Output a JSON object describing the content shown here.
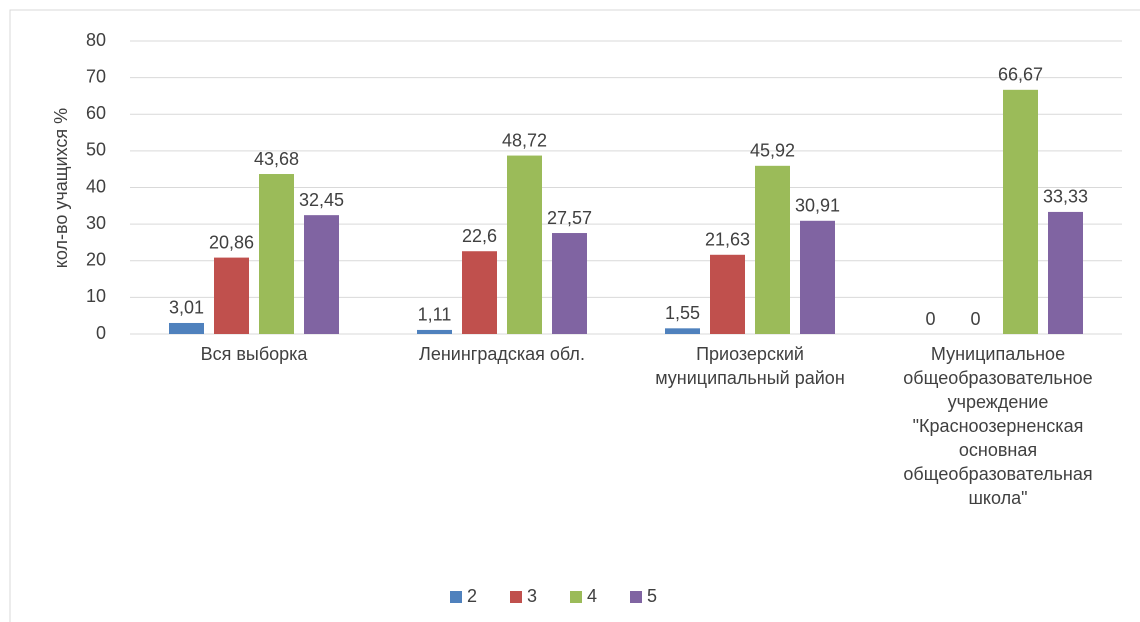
{
  "chart_data": {
    "type": "bar",
    "y_axis_label": "кол-во учащихся %",
    "categories": [
      "Вся выборка",
      "Ленинградская обл.",
      "Приозерский муниципальный район",
      "Муниципальное общеобразовательное учреждение \"Красноозерненская основная общеобразовательная школа\""
    ],
    "series": [
      {
        "name": "2",
        "color": "#4f81bd",
        "values": [
          3.01,
          1.11,
          1.55,
          0
        ],
        "value_labels": [
          "3,01",
          "1,11",
          "1,55",
          "0"
        ]
      },
      {
        "name": "3",
        "color": "#c0504d",
        "values": [
          20.86,
          22.6,
          21.63,
          0
        ],
        "value_labels": [
          "20,86",
          "22,6",
          "21,63",
          "0"
        ]
      },
      {
        "name": "4",
        "color": "#9bbb59",
        "values": [
          43.68,
          48.72,
          45.92,
          66.67
        ],
        "value_labels": [
          "43,68",
          "48,72",
          "45,92",
          "66,67"
        ]
      },
      {
        "name": "5",
        "color": "#8064a2",
        "values": [
          32.45,
          27.57,
          30.91,
          33.33
        ],
        "value_labels": [
          "32,45",
          "27,57",
          "30,91",
          "33,33"
        ]
      }
    ],
    "ylim": [
      0,
      80
    ],
    "yticks": [
      0,
      10,
      20,
      30,
      40,
      50,
      60,
      70,
      80
    ],
    "grid": true,
    "legend": "bottom"
  }
}
